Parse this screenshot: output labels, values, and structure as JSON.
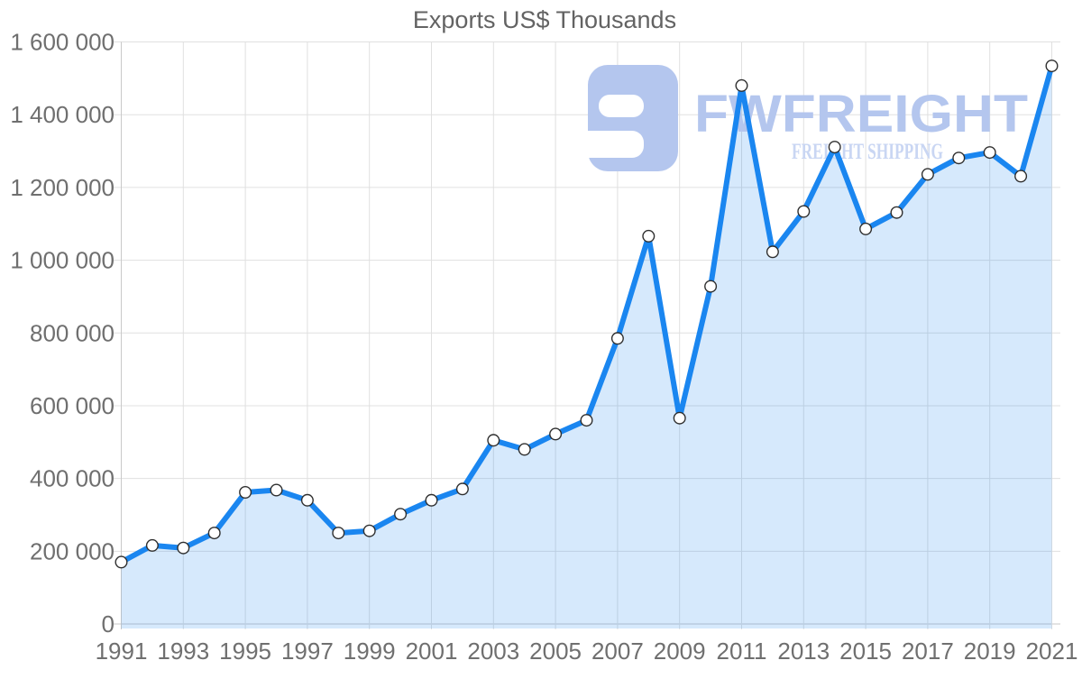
{
  "title": "Exports US$ Thousands",
  "watermark": {
    "brand": "FWFREIGHT",
    "tagline": "FREIGHT SHIPPING",
    "logo_icon": "fwfreight-logo-icon"
  },
  "colors": {
    "line": "#1a86f0",
    "area_fill": "#1a86f0",
    "area_opacity": 0.18,
    "marker_fill": "#ffffff",
    "marker_stroke": "#2f2f2f",
    "grid": "#e0e0e0",
    "axis": "#c9c9c9",
    "tick_label": "#6f6f6f",
    "title_text": "#636363",
    "watermark_main": "#b4c6ee",
    "watermark_tagline": "#c9d6f3"
  },
  "chart_data": {
    "type": "area",
    "title": "Exports US$ Thousands",
    "x": [
      1991,
      1992,
      1993,
      1994,
      1995,
      1996,
      1997,
      1998,
      1999,
      2000,
      2001,
      2002,
      2003,
      2004,
      2005,
      2006,
      2007,
      2008,
      2009,
      2010,
      2011,
      2012,
      2013,
      2014,
      2015,
      2016,
      2017,
      2018,
      2019,
      2020,
      2021
    ],
    "values": [
      170000,
      216000,
      209000,
      250000,
      362000,
      368000,
      340000,
      250000,
      256000,
      302000,
      340000,
      371000,
      505000,
      480000,
      522000,
      560000,
      785000,
      1066000,
      566000,
      928000,
      1480000,
      1023000,
      1134000,
      1311000,
      1086000,
      1131000,
      1236000,
      1281000,
      1296000,
      1231000,
      1534000
    ],
    "xlabel": "",
    "ylabel": "",
    "ylim": [
      0,
      1600000
    ],
    "ytick_step": 200000,
    "y_tick_labels": [
      "0",
      "200 000",
      "400 000",
      "600 000",
      "800 000",
      "1 000 000",
      "1 200 000",
      "1 400 000",
      "1 600 000"
    ],
    "x_tick_labels": [
      "1991",
      "1993",
      "1995",
      "1997",
      "1999",
      "2001",
      "2003",
      "2005",
      "2007",
      "2009",
      "2011",
      "2013",
      "2015",
      "2017",
      "2019",
      "2021"
    ],
    "grid": true,
    "legend_position": "none",
    "marker": "circle",
    "series_color": "#1a86f0"
  }
}
